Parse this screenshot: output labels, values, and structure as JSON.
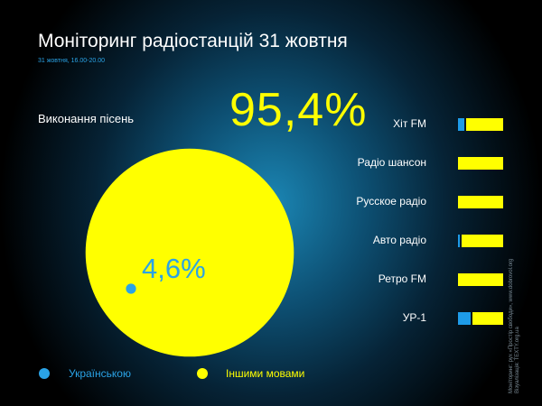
{
  "header": {
    "title": "Моніторинг радіостанцій 31 жовтня",
    "subtitle": "31 жовтня, 16.00-20.00"
  },
  "chart_data": [
    {
      "type": "pie",
      "title": "Виконання пісень",
      "slices": [
        {
          "name": "Українською",
          "value": 4.6,
          "label": "4,6%",
          "color": "#2aa3e6"
        },
        {
          "name": "Іншими мовами",
          "value": 95.4,
          "label": "95,4%",
          "color": "#ffff00"
        }
      ]
    },
    {
      "type": "bar",
      "orientation": "horizontal",
      "stacked": true,
      "categories": [
        "Хіт FM",
        "Радіо шансон",
        "Русское радіо",
        "Авто радіо",
        "Ретро FM",
        "УР-1"
      ],
      "series": [
        {
          "name": "Українською",
          "color": "#1e9be8",
          "values": [
            14,
            0,
            0,
            4,
            0,
            27
          ]
        },
        {
          "name": "Іншими мовами",
          "color": "#ffff00",
          "values": [
            86,
            100,
            100,
            96,
            100,
            73
          ]
        }
      ]
    }
  ],
  "legend": {
    "ua_label": "Українською",
    "other_label": "Іншими мовами"
  },
  "credits": {
    "line1": "Моніторинг: рух «Простір свободи», www.dobrovol.org",
    "line2": "Візуалізація: TEXTY.org.ua"
  }
}
